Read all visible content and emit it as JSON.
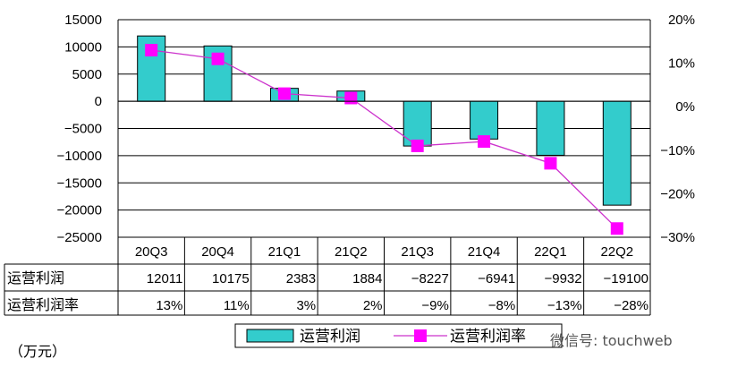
{
  "unit_label": "（万元）",
  "watermark": "微信号: touchweb",
  "colors": {
    "bar": "#33CCCC",
    "line": "#CC33CC",
    "marker": "#FF00FF"
  },
  "chart_data": {
    "type": "bar",
    "categories": [
      "20Q3",
      "20Q4",
      "21Q1",
      "21Q2",
      "21Q3",
      "21Q4",
      "22Q1",
      "22Q2"
    ],
    "series": [
      {
        "name": "运营利润",
        "type": "bar",
        "axis": "left",
        "values": [
          12011,
          10175,
          2383,
          1884,
          -8227,
          -6941,
          -9932,
          -19100
        ]
      },
      {
        "name": "运营利润率",
        "type": "line",
        "axis": "right",
        "values": [
          13,
          11,
          3,
          2,
          -9,
          -8,
          -13,
          -28
        ]
      }
    ],
    "y_left": {
      "range": [
        -25000,
        15000
      ],
      "ticks": [
        "15000",
        "10000",
        "5000",
        "0",
        "-5000",
        "-10000",
        "-15000",
        "-20000",
        "-25000"
      ]
    },
    "y_right": {
      "range": [
        -30,
        20
      ],
      "ticks": [
        "20%",
        "10%",
        "0%",
        "-10%",
        "-20%",
        "-30%"
      ]
    },
    "table": {
      "rows": [
        {
          "label": "运营利润",
          "cells": [
            "12011",
            "10175",
            "2383",
            "1884",
            "-8227",
            "-6941",
            "-9932",
            "-19100"
          ]
        },
        {
          "label": "运营利润率",
          "cells": [
            "13%",
            "11%",
            "3%",
            "2%",
            "-9%",
            "-8%",
            "-13%",
            "-28%"
          ]
        }
      ]
    },
    "legend": [
      "运营利润",
      "运营利润率"
    ],
    "grid": true
  }
}
